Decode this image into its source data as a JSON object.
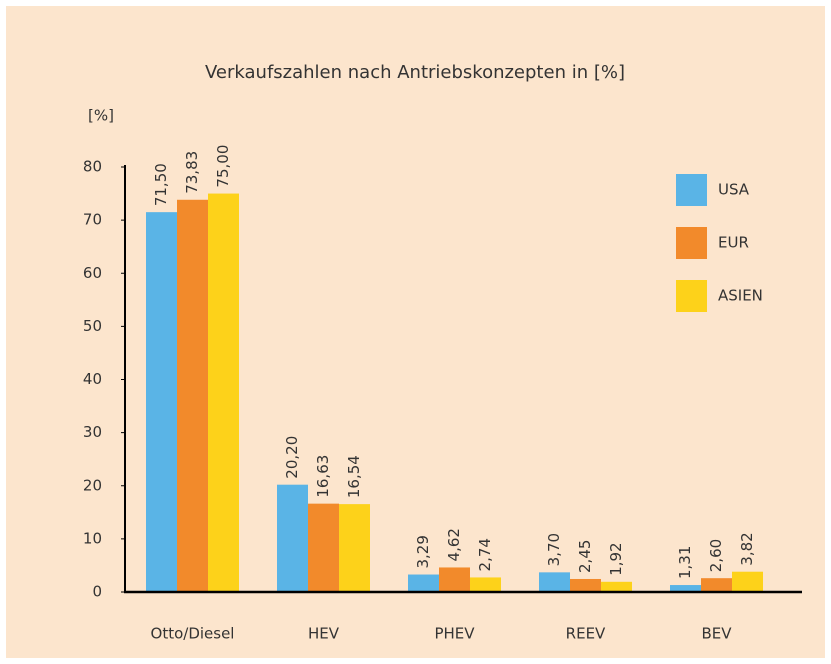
{
  "chart_data": {
    "type": "bar",
    "title": "Verkaufszahlen nach Antriebskonzepten in [%]",
    "y_label": "[%]",
    "categories": [
      "Otto/Diesel",
      "HEV",
      "PHEV",
      "REEV",
      "BEV"
    ],
    "series": [
      {
        "name": "USA",
        "color": "#5ab4e6",
        "values": [
          71.5,
          20.2,
          3.29,
          3.7,
          1.31
        ],
        "value_labels": [
          "71,50",
          "20,20",
          "3,29",
          "3,70",
          "1,31"
        ]
      },
      {
        "name": "EUR",
        "color": "#f28a2b",
        "values": [
          73.83,
          16.63,
          4.62,
          2.45,
          2.6
        ],
        "value_labels": [
          "73,83",
          "16,63",
          "4,62",
          "2,45",
          "2,60"
        ]
      },
      {
        "name": "ASIEN",
        "color": "#fdd21a",
        "values": [
          75.0,
          16.54,
          2.74,
          1.92,
          3.82
        ],
        "value_labels": [
          "75,00",
          "16,54",
          "2,74",
          "1,92",
          "3,82"
        ]
      }
    ],
    "ylim": [
      0,
      80
    ],
    "yticks": [
      0,
      10,
      20,
      30,
      40,
      50,
      60,
      70,
      80
    ],
    "grid": false,
    "legend": "upper right"
  }
}
